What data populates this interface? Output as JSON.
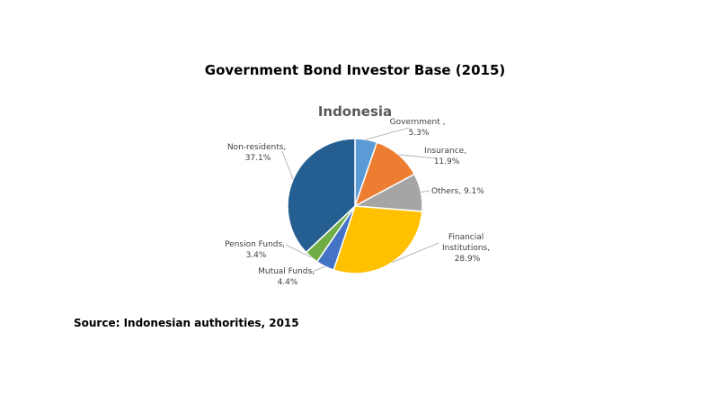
{
  "header": {
    "title": "Government Bond Investor Base (2015)"
  },
  "footer": {
    "source": "Source: Indonesian authorities, 2015"
  },
  "chart_data": {
    "type": "pie",
    "title": "Indonesia",
    "slices": [
      {
        "label": "Government ,",
        "value": 5.3,
        "value_label": "5.3%",
        "color": "#5B9BD5"
      },
      {
        "label": "Insurance,",
        "value": 11.9,
        "value_label": "11.9%",
        "color": "#ED7D31"
      },
      {
        "label": "Others, 9.1%",
        "value": 9.1,
        "value_label": "",
        "color": "#A5A5A5"
      },
      {
        "label": "Financial Institutions,",
        "value": 28.9,
        "value_label": "28.9%",
        "color": "#FFC000"
      },
      {
        "label": "Mutual Funds,",
        "value": 4.4,
        "value_label": "4.4%",
        "color": "#4472C4"
      },
      {
        "label": "Pension Funds,",
        "value": 3.4,
        "value_label": "3.4%",
        "color": "#70AD47"
      },
      {
        "label": "Non-residents,",
        "value": 37.1,
        "value_label": "37.1%",
        "color": "#255E91"
      }
    ]
  }
}
